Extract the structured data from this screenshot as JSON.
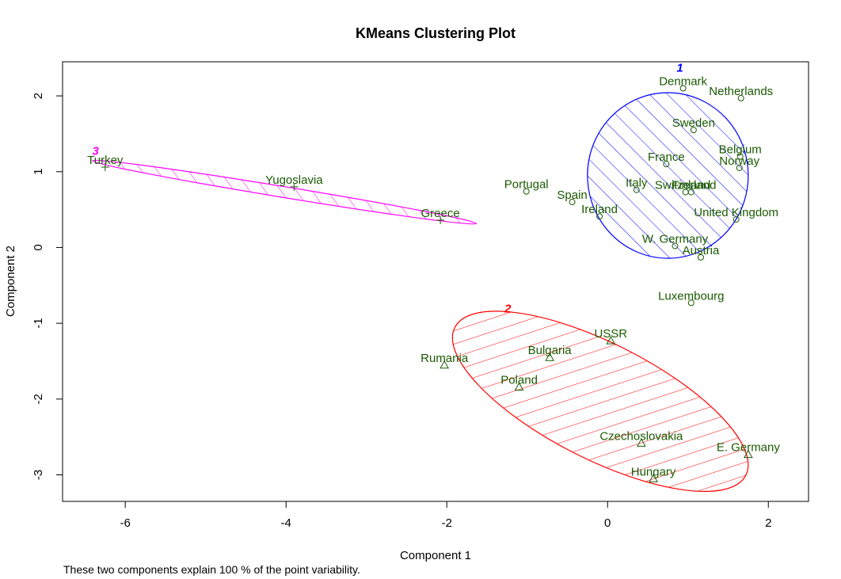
{
  "chart_data": {
    "type": "scatter",
    "title": "KMeans Clustering Plot",
    "xlabel": "Component 1",
    "ylabel": "Component 2",
    "xlim": [
      -6.78,
      2.5
    ],
    "ylim": [
      -3.35,
      2.45
    ],
    "xticks": [
      -6,
      -4,
      -2,
      0,
      2
    ],
    "yticks": [
      -3,
      -2,
      -1,
      0,
      1,
      2
    ],
    "grid": false,
    "footnote": "These two components explain 100 % of the point variability.",
    "clusters": [
      {
        "id": "1",
        "color": "#0000ff",
        "marker": "circle",
        "label_pos": [
          0.9,
          2.32
        ],
        "ellipse": {
          "cx": 0.75,
          "cy": 0.95,
          "rx": 1.0,
          "ry": 1.03,
          "angle": 0,
          "hatch_angle": 45
        },
        "points": [
          {
            "name": "Denmark",
            "x": 0.94,
            "y": 2.1
          },
          {
            "name": "Netherlands",
            "x": 1.66,
            "y": 1.97
          },
          {
            "name": "Sweden",
            "x": 1.07,
            "y": 1.55
          },
          {
            "name": "France",
            "x": 0.73,
            "y": 1.1
          },
          {
            "name": "Belgium",
            "x": 1.65,
            "y": 1.2
          },
          {
            "name": "Norway",
            "x": 1.64,
            "y": 1.05
          },
          {
            "name": "Portugal",
            "x": -1.01,
            "y": 0.74
          },
          {
            "name": "Spain",
            "x": -0.44,
            "y": 0.6
          },
          {
            "name": "Italy",
            "x": 0.36,
            "y": 0.76
          },
          {
            "name": "Switzerland",
            "x": 0.97,
            "y": 0.73
          },
          {
            "name": "Finland",
            "x": 1.04,
            "y": 0.73
          },
          {
            "name": "Ireland",
            "x": -0.1,
            "y": 0.41
          },
          {
            "name": "United Kingdom",
            "x": 1.6,
            "y": 0.37
          },
          {
            "name": "W. Germany",
            "x": 0.84,
            "y": 0.02
          },
          {
            "name": "Austria",
            "x": 1.16,
            "y": -0.13
          },
          {
            "name": "Luxembourg",
            "x": 1.04,
            "y": -0.73
          }
        ]
      },
      {
        "id": "2",
        "color": "#ff0000",
        "marker": "triangle",
        "label_pos": [
          -1.24,
          -0.86
        ],
        "ellipse": {
          "cx": -0.09,
          "cy": -2.03,
          "rx": 2.03,
          "ry": 0.72,
          "angle": -26.9,
          "hatch_angle": 135
        },
        "points": [
          {
            "name": "USSR",
            "x": 0.04,
            "y": -1.23
          },
          {
            "name": "Bulgaria",
            "x": -0.72,
            "y": -1.45
          },
          {
            "name": "Rumania",
            "x": -2.03,
            "y": -1.55
          },
          {
            "name": "Poland",
            "x": -1.1,
            "y": -1.84
          },
          {
            "name": "Czechoslovakia",
            "x": 0.42,
            "y": -2.58
          },
          {
            "name": "E. Germany",
            "x": 1.75,
            "y": -2.73
          },
          {
            "name": "Hungary",
            "x": 0.57,
            "y": -3.05
          }
        ]
      },
      {
        "id": "3",
        "color": "#ff00ff",
        "marker": "plus",
        "label_pos": [
          -6.37,
          1.22
        ],
        "ellipse": {
          "cx": -4.02,
          "cy": 0.73,
          "rx": 2.42,
          "ry": 0.0675,
          "angle": -9.3,
          "hatch_angle": 45
        },
        "points": [
          {
            "name": "Turkey",
            "x": -6.25,
            "y": 1.06
          },
          {
            "name": "Yugoslavia",
            "x": -3.9,
            "y": 0.8
          },
          {
            "name": "Greece",
            "x": -2.08,
            "y": 0.36
          }
        ]
      }
    ]
  }
}
